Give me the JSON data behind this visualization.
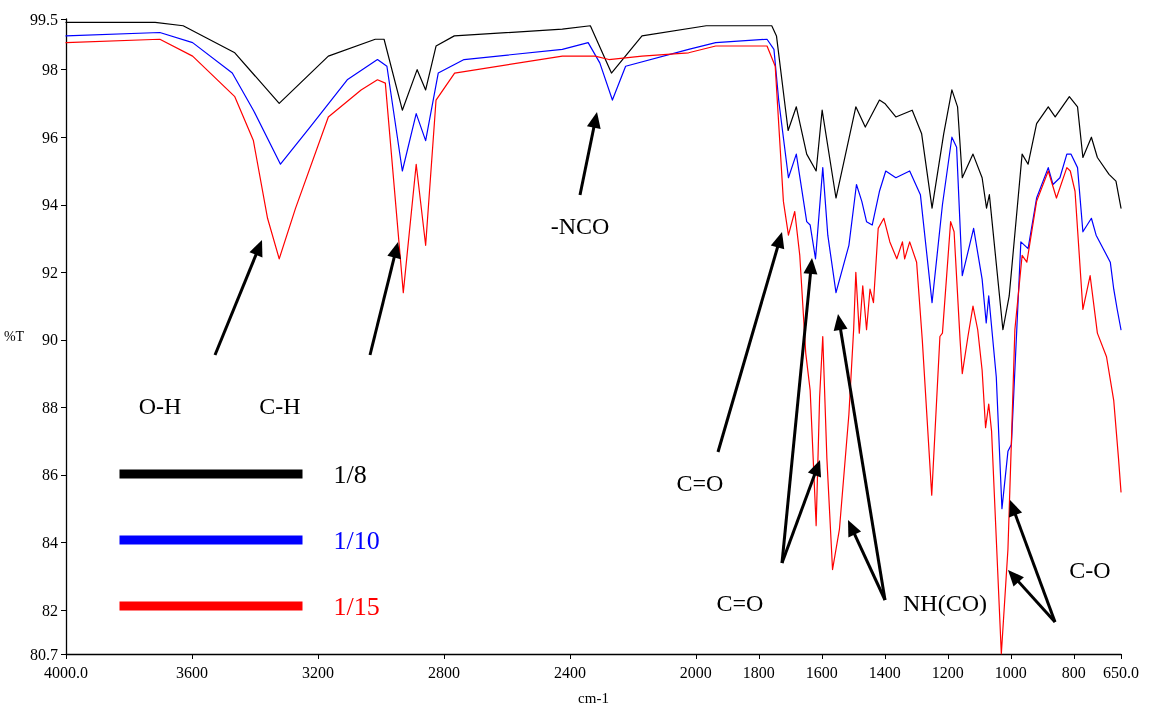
{
  "chart_data": {
    "type": "line",
    "xlabel": "cm-1",
    "ylabel": "%T",
    "xlim": [
      4000,
      650
    ],
    "xticks": [
      {
        "value": 4000,
        "label": "4000.0"
      },
      3600,
      3200,
      2800,
      2400,
      2000,
      1800,
      1600,
      1400,
      1200,
      1000,
      800,
      {
        "value": 650,
        "label": "650.0"
      }
    ],
    "ylim": [
      80.7,
      99.5
    ],
    "yticks": [
      80.7,
      82,
      84,
      86,
      88,
      90,
      92,
      94,
      96,
      98,
      99.5
    ],
    "grid": false,
    "legend": "bottom left",
    "series": [
      {
        "name": "1/8",
        "color": "#000000",
        "x": [
          4000,
          3717,
          3628,
          3464,
          3323,
          3167,
          3018,
          2990,
          2932,
          2885,
          2858,
          2825,
          2767,
          2424,
          2335,
          2268,
          2171,
          1967,
          1759,
          1744,
          1707,
          1681,
          1648,
          1618,
          1599,
          1555,
          1492,
          1462,
          1417,
          1400,
          1365,
          1313,
          1283,
          1250,
          1213,
          1187,
          1169,
          1154,
          1120,
          1091,
          1077,
          1068,
          1025,
          1005,
          964,
          945,
          918,
          881,
          859,
          814,
          788,
          771,
          744,
          725,
          688,
          666,
          650
        ],
        "values": [
          99.4,
          99.4,
          99.3,
          98.5,
          97.0,
          98.4,
          98.9,
          98.9,
          96.8,
          98.0,
          97.4,
          98.7,
          99.0,
          99.2,
          99.3,
          97.9,
          99.0,
          99.3,
          99.3,
          99.0,
          96.2,
          96.9,
          95.5,
          95.0,
          96.8,
          94.2,
          96.9,
          96.3,
          97.1,
          97.0,
          96.6,
          96.8,
          96.1,
          93.9,
          96.1,
          97.4,
          96.9,
          94.8,
          95.5,
          94.8,
          93.9,
          94.3,
          90.3,
          91.3,
          95.5,
          95.2,
          96.4,
          96.9,
          96.6,
          97.2,
          96.9,
          95.4,
          96.0,
          95.4,
          94.9,
          94.7,
          93.9
        ]
      },
      {
        "name": "1/10",
        "color": "#0000ff",
        "x": [
          4000,
          3702,
          3598,
          3472,
          3405,
          3319,
          3225,
          3107,
          3011,
          2981,
          2932,
          2888,
          2858,
          2818,
          2736,
          2424,
          2342,
          2305,
          2265,
          2223,
          2023,
          1937,
          1774,
          1752,
          1737,
          1706,
          1681,
          1648,
          1637,
          1620,
          1597,
          1581,
          1555,
          1514,
          1490,
          1473,
          1458,
          1440,
          1417,
          1397,
          1365,
          1321,
          1287,
          1250,
          1217,
          1187,
          1172,
          1154,
          1118,
          1091,
          1078,
          1070,
          1046,
          1028,
          1009,
          998,
          968,
          945,
          918,
          881,
          866,
          844,
          822,
          809,
          788,
          771,
          744,
          729,
          684,
          673,
          662,
          650
        ],
        "values": [
          99.0,
          99.1,
          98.8,
          97.9,
          96.8,
          95.2,
          96.3,
          97.7,
          98.3,
          98.1,
          95.0,
          96.7,
          95.9,
          97.9,
          98.3,
          98.6,
          98.8,
          98.2,
          97.1,
          98.1,
          98.6,
          98.8,
          98.9,
          98.6,
          97.1,
          94.8,
          95.5,
          93.5,
          93.4,
          92.4,
          95.1,
          93.1,
          91.4,
          92.8,
          94.6,
          94.1,
          93.5,
          93.4,
          94.4,
          95.0,
          94.8,
          95.0,
          94.3,
          91.1,
          94.0,
          96.0,
          95.7,
          91.9,
          93.3,
          91.8,
          90.5,
          91.3,
          88.9,
          85.0,
          86.7,
          86.9,
          92.9,
          92.7,
          94.2,
          95.1,
          94.6,
          94.8,
          95.5,
          95.5,
          95.1,
          93.2,
          93.6,
          93.1,
          92.3,
          91.5,
          90.9,
          90.3
        ]
      },
      {
        "name": "1/15",
        "color": "#ff0000",
        "x": [
          4000,
          3702,
          3598,
          3464,
          3405,
          3360,
          3323,
          3271,
          3167,
          3063,
          3011,
          2986,
          2929,
          2888,
          2858,
          2825,
          2766,
          2424,
          2320,
          2276,
          2171,
          2023,
          1937,
          1774,
          1748,
          1722,
          1706,
          1686,
          1670,
          1651,
          1637,
          1618,
          1607,
          1597,
          1584,
          1566,
          1544,
          1514,
          1499,
          1492,
          1481,
          1470,
          1458,
          1447,
          1436,
          1421,
          1403,
          1384,
          1362,
          1344,
          1337,
          1321,
          1299,
          1281,
          1251,
          1225,
          1217,
          1191,
          1180,
          1161,
          1154,
          1136,
          1120,
          1105,
          1091,
          1080,
          1070,
          1061,
          1030,
          1009,
          998,
          987,
          964,
          949,
          918,
          881,
          855,
          822,
          811,
          796,
          771,
          748,
          725,
          696,
          673,
          658,
          650
        ],
        "values": [
          98.8,
          98.9,
          98.4,
          97.2,
          95.9,
          93.6,
          92.4,
          93.9,
          96.6,
          97.4,
          97.7,
          97.6,
          91.4,
          95.2,
          92.8,
          97.1,
          97.9,
          98.4,
          98.4,
          98.3,
          98.4,
          98.5,
          98.7,
          98.7,
          98.1,
          94.1,
          93.1,
          93.8,
          92.5,
          89.6,
          88.5,
          84.5,
          88.3,
          90.1,
          86.5,
          83.2,
          84.4,
          87.8,
          90.3,
          92.0,
          90.2,
          91.6,
          90.3,
          91.5,
          91.1,
          93.3,
          93.6,
          92.9,
          92.4,
          92.9,
          92.4,
          92.9,
          92.3,
          90.0,
          85.4,
          90.1,
          90.2,
          93.5,
          93.2,
          90.0,
          89.0,
          90.1,
          91.0,
          90.3,
          89.1,
          87.4,
          88.1,
          87.3,
          80.7,
          83.8,
          87.0,
          90.3,
          92.5,
          92.3,
          94.1,
          95.0,
          94.2,
          95.1,
          95.0,
          94.4,
          90.9,
          91.9,
          90.2,
          89.5,
          88.2,
          86.5,
          85.5
        ]
      }
    ],
    "annotations": [
      "O-H",
      "C-H",
      "-NCO",
      "C=O",
      "C=O",
      "NH(CO)",
      "C-O"
    ]
  }
}
